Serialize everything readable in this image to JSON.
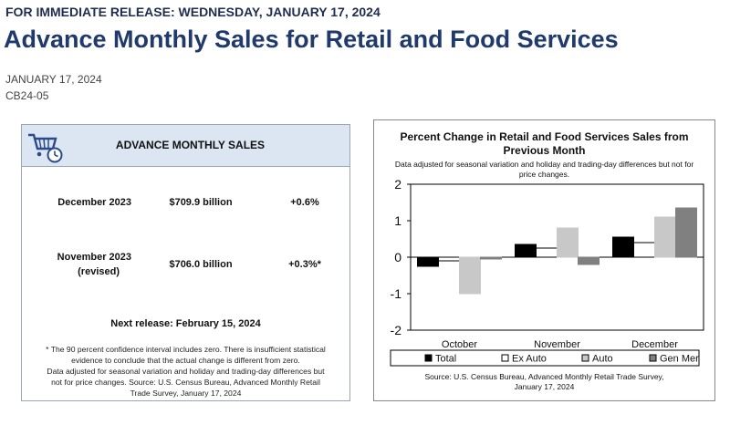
{
  "header": {
    "release": "FOR IMMEDIATE RELEASE: WEDNESDAY, JANUARY 17, 2024",
    "title": "Advance Monthly Sales for Retail and Food Services",
    "date": "JANUARY 17, 2024",
    "code": "CB24-05"
  },
  "summary": {
    "heading": "ADVANCE MONTHLY SALES",
    "icon": "shopping-cart-clock-icon",
    "rows": [
      {
        "period": "December 2023",
        "period2": "",
        "amount": "$709.9 billion",
        "change": "+0.6%"
      },
      {
        "period": "November 2023",
        "period2": "(revised)",
        "amount": "$706.0 billion",
        "change": "+0.3%*"
      }
    ],
    "next_release": "Next release: February 15, 2024",
    "footnote_1": "* The 90 percent confidence interval includes zero. There is insufficient statistical",
    "footnote_2": "evidence to conclude that the actual change is different from zero.",
    "footnote_3": "Data adjusted for seasonal variation and holiday and trading-day differences but",
    "footnote_4": "not for price changes. Source: U.S. Census Bureau, Advanced Monthly Retail",
    "footnote_5": "Trade Survey, January 17, 2024"
  },
  "chart_data": {
    "type": "bar",
    "title_1": "Percent Change in Retail and Food Services Sales from",
    "title_2": "Previous Month",
    "subtitle_1": "Data adjusted for seasonal variation and holiday and trading-day differences but not for",
    "subtitle_2": "price changes.",
    "source_1": "Source: U.S. Census Bureau, Advanced Monthly Retail Trade Survey,",
    "source_2": "January 17, 2024",
    "categories": [
      "October",
      "November",
      "December"
    ],
    "ylim": [
      -2,
      2
    ],
    "yticks": [
      "2",
      "1",
      "0",
      "-1",
      "-2"
    ],
    "series": [
      {
        "name": "Total",
        "color": "#000000",
        "values": [
          -0.25,
          0.35,
          0.55
        ]
      },
      {
        "name": "Ex Auto",
        "color": "#ffffff",
        "values": [
          -0.1,
          0.25,
          0.4
        ]
      },
      {
        "name": "Auto",
        "color": "#c8c8c8",
        "values": [
          -1.0,
          0.8,
          1.1
        ]
      },
      {
        "name": "Gen Mer",
        "color": "#808080",
        "values": [
          -0.05,
          -0.2,
          1.35
        ]
      }
    ],
    "legend_position": "bottom"
  }
}
